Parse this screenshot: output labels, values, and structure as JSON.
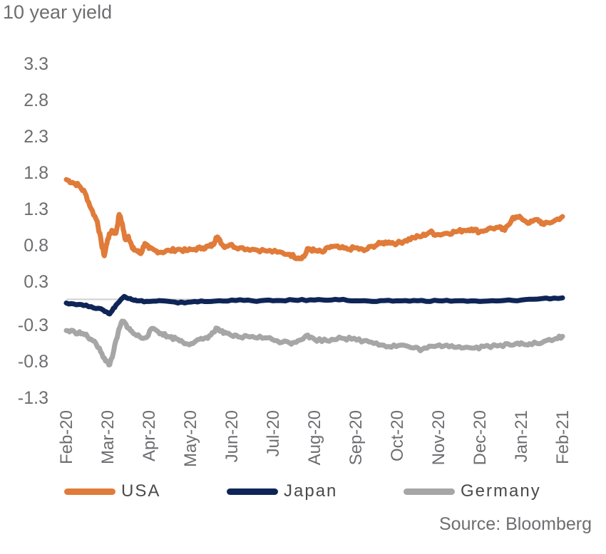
{
  "chart_data": {
    "type": "line",
    "title": "10 year yield",
    "source": "Source: Bloomberg",
    "xlabel": "",
    "ylabel": "",
    "yticks": [
      3.3,
      2.8,
      2.3,
      1.8,
      1.3,
      0.8,
      0.3,
      -0.3,
      -0.8,
      -1.3
    ],
    "ylim": [
      -1.3,
      3.3
    ],
    "xticks": [
      "Feb-20",
      "Mar-20",
      "Apr-20",
      "May-20",
      "Jun-20",
      "Jul-20",
      "Aug-20",
      "Sep-20",
      "Oct-20",
      "Nov-20",
      "Dec-20",
      "Jan-21",
      "Feb-21"
    ],
    "grid": false,
    "legend_position": "bottom",
    "series": [
      {
        "name": "USA",
        "color": "#e07b39",
        "points": [
          [
            0,
            1.7
          ],
          [
            0.15,
            1.66
          ],
          [
            0.3,
            1.62
          ],
          [
            0.45,
            1.52
          ],
          [
            0.6,
            1.3
          ],
          [
            0.75,
            1.12
          ],
          [
            0.85,
            0.82
          ],
          [
            0.92,
            0.65
          ],
          [
            1.0,
            0.88
          ],
          [
            1.1,
            1.0
          ],
          [
            1.2,
            0.96
          ],
          [
            1.28,
            1.22
          ],
          [
            1.35,
            1.1
          ],
          [
            1.42,
            0.88
          ],
          [
            1.5,
            0.92
          ],
          [
            1.6,
            0.75
          ],
          [
            1.7,
            0.72
          ],
          [
            1.8,
            0.68
          ],
          [
            1.9,
            0.82
          ],
          [
            2.0,
            0.75
          ],
          [
            2.15,
            0.72
          ],
          [
            2.3,
            0.7
          ],
          [
            2.5,
            0.72
          ],
          [
            2.7,
            0.74
          ],
          [
            2.9,
            0.72
          ],
          [
            3.1,
            0.74
          ],
          [
            3.3,
            0.76
          ],
          [
            3.45,
            0.78
          ],
          [
            3.55,
            0.8
          ],
          [
            3.62,
            0.9
          ],
          [
            3.7,
            0.88
          ],
          [
            3.8,
            0.78
          ],
          [
            3.95,
            0.8
          ],
          [
            4.2,
            0.76
          ],
          [
            4.5,
            0.74
          ],
          [
            4.8,
            0.72
          ],
          [
            5.1,
            0.7
          ],
          [
            5.4,
            0.67
          ],
          [
            5.6,
            0.62
          ],
          [
            5.75,
            0.64
          ],
          [
            5.85,
            0.75
          ],
          [
            6.0,
            0.72
          ],
          [
            6.2,
            0.7
          ],
          [
            6.4,
            0.78
          ],
          [
            6.6,
            0.76
          ],
          [
            6.8,
            0.74
          ],
          [
            7.0,
            0.76
          ],
          [
            7.2,
            0.72
          ],
          [
            7.4,
            0.78
          ],
          [
            7.6,
            0.82
          ],
          [
            7.8,
            0.84
          ],
          [
            8.0,
            0.82
          ],
          [
            8.2,
            0.86
          ],
          [
            8.4,
            0.9
          ],
          [
            8.6,
            0.92
          ],
          [
            8.8,
            0.98
          ],
          [
            8.95,
            0.94
          ],
          [
            9.2,
            0.96
          ],
          [
            9.4,
            0.98
          ],
          [
            9.6,
            1.0
          ],
          [
            9.8,
            1.02
          ],
          [
            10.0,
            0.98
          ],
          [
            10.2,
            1.02
          ],
          [
            10.45,
            1.04
          ],
          [
            10.6,
            1.0
          ],
          [
            10.8,
            1.18
          ],
          [
            11.0,
            1.17
          ],
          [
            11.2,
            1.1
          ],
          [
            11.4,
            1.15
          ],
          [
            11.55,
            1.08
          ],
          [
            11.8,
            1.13
          ],
          [
            12.0,
            1.19
          ]
        ]
      },
      {
        "name": "Japan",
        "color": "#0f2557",
        "points": [
          [
            0,
            0.0
          ],
          [
            0.3,
            -0.02
          ],
          [
            0.6,
            -0.05
          ],
          [
            0.9,
            -0.1
          ],
          [
            1.05,
            -0.15
          ],
          [
            1.2,
            -0.03
          ],
          [
            1.4,
            0.09
          ],
          [
            1.55,
            0.06
          ],
          [
            1.7,
            0.03
          ],
          [
            2.0,
            0.02
          ],
          [
            2.3,
            0.03
          ],
          [
            2.7,
            0.0
          ],
          [
            3.1,
            0.02
          ],
          [
            3.5,
            0.02
          ],
          [
            4.0,
            0.04
          ],
          [
            4.5,
            0.03
          ],
          [
            5.0,
            0.03
          ],
          [
            5.5,
            0.04
          ],
          [
            6.0,
            0.04
          ],
          [
            6.5,
            0.05
          ],
          [
            7.0,
            0.03
          ],
          [
            7.5,
            0.02
          ],
          [
            8.0,
            0.03
          ],
          [
            8.5,
            0.03
          ],
          [
            9.0,
            0.03
          ],
          [
            9.5,
            0.03
          ],
          [
            10.0,
            0.02
          ],
          [
            10.5,
            0.03
          ],
          [
            11.0,
            0.04
          ],
          [
            11.5,
            0.06
          ],
          [
            12.0,
            0.07
          ]
        ]
      },
      {
        "name": "Germany",
        "color": "#a6a6a6",
        "points": [
          [
            0,
            -0.38
          ],
          [
            0.2,
            -0.4
          ],
          [
            0.4,
            -0.42
          ],
          [
            0.6,
            -0.5
          ],
          [
            0.8,
            -0.62
          ],
          [
            0.95,
            -0.8
          ],
          [
            1.05,
            -0.85
          ],
          [
            1.15,
            -0.65
          ],
          [
            1.25,
            -0.42
          ],
          [
            1.35,
            -0.25
          ],
          [
            1.45,
            -0.3
          ],
          [
            1.55,
            -0.38
          ],
          [
            1.7,
            -0.45
          ],
          [
            1.9,
            -0.48
          ],
          [
            2.1,
            -0.35
          ],
          [
            2.3,
            -0.42
          ],
          [
            2.5,
            -0.47
          ],
          [
            2.7,
            -0.5
          ],
          [
            2.9,
            -0.56
          ],
          [
            3.1,
            -0.54
          ],
          [
            3.3,
            -0.5
          ],
          [
            3.5,
            -0.44
          ],
          [
            3.65,
            -0.35
          ],
          [
            3.8,
            -0.42
          ],
          [
            4.0,
            -0.45
          ],
          [
            4.2,
            -0.47
          ],
          [
            4.5,
            -0.46
          ],
          [
            4.8,
            -0.48
          ],
          [
            5.1,
            -0.52
          ],
          [
            5.4,
            -0.55
          ],
          [
            5.6,
            -0.52
          ],
          [
            5.8,
            -0.45
          ],
          [
            6.0,
            -0.5
          ],
          [
            6.3,
            -0.52
          ],
          [
            6.6,
            -0.47
          ],
          [
            6.9,
            -0.5
          ],
          [
            7.2,
            -0.52
          ],
          [
            7.5,
            -0.55
          ],
          [
            7.8,
            -0.6
          ],
          [
            8.1,
            -0.58
          ],
          [
            8.4,
            -0.62
          ],
          [
            8.6,
            -0.64
          ],
          [
            8.9,
            -0.6
          ],
          [
            9.2,
            -0.58
          ],
          [
            9.5,
            -0.6
          ],
          [
            9.8,
            -0.62
          ],
          [
            10.1,
            -0.6
          ],
          [
            10.5,
            -0.58
          ],
          [
            10.8,
            -0.58
          ],
          [
            11.0,
            -0.55
          ],
          [
            11.2,
            -0.56
          ],
          [
            11.5,
            -0.55
          ],
          [
            11.8,
            -0.5
          ],
          [
            12.0,
            -0.46
          ]
        ]
      }
    ]
  }
}
